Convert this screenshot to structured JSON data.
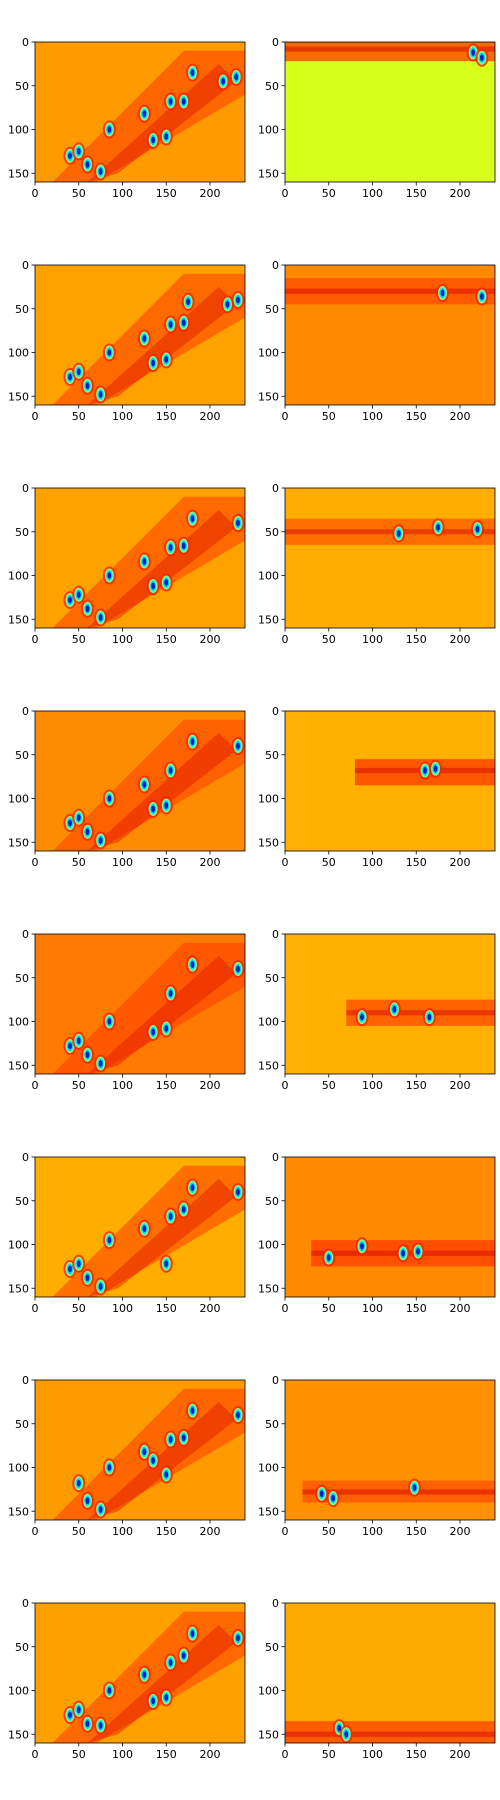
{
  "figure": {
    "layout": "8 rows x 2 columns grid of heatmap panels",
    "colormap": "jet",
    "palette": [
      "#00007f",
      "#0040ff",
      "#00e0ff",
      "#7fff7f",
      "#d7ff1a",
      "#ffd000",
      "#ffa000",
      "#ff6a00",
      "#ff2a00",
      "#d00000",
      "#7f0000"
    ]
  },
  "chart_data": [
    {
      "type": "heatmap",
      "row": 1,
      "column": "left",
      "xlim": [
        0,
        240
      ],
      "ylim": [
        160,
        0
      ],
      "xticks": [
        0,
        50,
        100,
        150,
        200
      ],
      "yticks": [
        0,
        50,
        100,
        150
      ],
      "background": "#ff9a00",
      "band": null,
      "pattern": "diagonal ridge from lower-left to upper-right with blue/cyan blobs",
      "blobs": [
        [
          40,
          130
        ],
        [
          50,
          125
        ],
        [
          60,
          140
        ],
        [
          75,
          148
        ],
        [
          85,
          100
        ],
        [
          125,
          82
        ],
        [
          135,
          112
        ],
        [
          150,
          108
        ],
        [
          155,
          68
        ],
        [
          170,
          68
        ],
        [
          180,
          35
        ],
        [
          215,
          45
        ],
        [
          230,
          40
        ]
      ]
    },
    {
      "type": "heatmap",
      "row": 1,
      "column": "right",
      "xlim": [
        0,
        240
      ],
      "ylim": [
        160,
        0
      ],
      "xticks": [
        0,
        50,
        100,
        150,
        200
      ],
      "yticks": [
        0,
        50,
        100,
        150
      ],
      "background": "#d7ff1a",
      "band": {
        "y_start": 0,
        "y_end": 22,
        "center": 8,
        "x_start": 0,
        "x_end": 240,
        "color": "#ff3a00"
      },
      "pattern": "red band along top edge, uniform yellow-green below",
      "blobs": [
        [
          215,
          12
        ],
        [
          225,
          18
        ]
      ]
    },
    {
      "type": "heatmap",
      "row": 2,
      "column": "left",
      "xlim": [
        0,
        240
      ],
      "ylim": [
        160,
        0
      ],
      "xticks": [
        0,
        50,
        100,
        150,
        200
      ],
      "yticks": [
        0,
        50,
        100,
        150
      ],
      "background": "#ffa200",
      "band": null,
      "pattern": "diagonal ridge from lower-left to upper-right with blue/cyan blobs",
      "blobs": [
        [
          40,
          128
        ],
        [
          50,
          122
        ],
        [
          60,
          138
        ],
        [
          75,
          148
        ],
        [
          85,
          100
        ],
        [
          125,
          84
        ],
        [
          135,
          112
        ],
        [
          150,
          108
        ],
        [
          155,
          68
        ],
        [
          170,
          66
        ],
        [
          175,
          42
        ],
        [
          220,
          45
        ],
        [
          232,
          40
        ]
      ]
    },
    {
      "type": "heatmap",
      "row": 2,
      "column": "right",
      "xlim": [
        0,
        240
      ],
      "ylim": [
        160,
        0
      ],
      "xticks": [
        0,
        50,
        100,
        150,
        200
      ],
      "yticks": [
        0,
        50,
        100,
        150
      ],
      "background": "#ff8a00",
      "band": {
        "y_start": 15,
        "y_end": 45,
        "center": 30,
        "x_start": 0,
        "x_end": 240,
        "color": "#ff4a00"
      },
      "pattern": "horizontal band near y=30",
      "blobs": [
        [
          180,
          32
        ],
        [
          225,
          36
        ]
      ]
    },
    {
      "type": "heatmap",
      "row": 3,
      "column": "left",
      "xlim": [
        0,
        240
      ],
      "ylim": [
        160,
        0
      ],
      "xticks": [
        0,
        50,
        100,
        150,
        200
      ],
      "yticks": [
        0,
        50,
        100,
        150
      ],
      "background": "#ffa200",
      "band": null,
      "pattern": "diagonal ridge from lower-left to upper-right with blue/cyan blobs",
      "blobs": [
        [
          40,
          128
        ],
        [
          50,
          122
        ],
        [
          60,
          138
        ],
        [
          75,
          148
        ],
        [
          85,
          100
        ],
        [
          125,
          84
        ],
        [
          135,
          112
        ],
        [
          150,
          108
        ],
        [
          155,
          68
        ],
        [
          170,
          66
        ],
        [
          180,
          35
        ],
        [
          232,
          40
        ]
      ]
    },
    {
      "type": "heatmap",
      "row": 3,
      "column": "right",
      "xlim": [
        0,
        240
      ],
      "ylim": [
        160,
        0
      ],
      "xticks": [
        0,
        50,
        100,
        150,
        200
      ],
      "yticks": [
        0,
        50,
        100,
        150
      ],
      "background": "#ffae00",
      "band": {
        "y_start": 35,
        "y_end": 65,
        "center": 50,
        "x_start": 0,
        "x_end": 240,
        "color": "#ff5a00"
      },
      "pattern": "horizontal band near y=50",
      "blobs": [
        [
          130,
          52
        ],
        [
          175,
          45
        ],
        [
          220,
          47
        ]
      ]
    },
    {
      "type": "heatmap",
      "row": 4,
      "column": "left",
      "xlim": [
        0,
        240
      ],
      "ylim": [
        160,
        0
      ],
      "xticks": [
        0,
        50,
        100,
        150,
        200
      ],
      "yticks": [
        0,
        50,
        100,
        150
      ],
      "background": "#ff8c00",
      "band": null,
      "pattern": "diagonal ridge from lower-left to upper-right with blue/cyan blobs",
      "blobs": [
        [
          40,
          128
        ],
        [
          50,
          122
        ],
        [
          60,
          138
        ],
        [
          75,
          148
        ],
        [
          85,
          100
        ],
        [
          125,
          84
        ],
        [
          135,
          112
        ],
        [
          150,
          108
        ],
        [
          155,
          68
        ],
        [
          180,
          35
        ],
        [
          232,
          40
        ]
      ]
    },
    {
      "type": "heatmap",
      "row": 4,
      "column": "right",
      "xlim": [
        0,
        240
      ],
      "ylim": [
        160,
        0
      ],
      "xticks": [
        0,
        50,
        100,
        150,
        200
      ],
      "yticks": [
        0,
        50,
        100,
        150
      ],
      "background": "#ffb000",
      "band": {
        "y_start": 55,
        "y_end": 85,
        "center": 68,
        "x_start": 80,
        "x_end": 240,
        "color": "#ff3a00"
      },
      "pattern": "horizontal band near y=68",
      "blobs": [
        [
          160,
          68
        ],
        [
          172,
          66
        ]
      ]
    },
    {
      "type": "heatmap",
      "row": 5,
      "column": "left",
      "xlim": [
        0,
        240
      ],
      "ylim": [
        160,
        0
      ],
      "xticks": [
        0,
        50,
        100,
        150,
        200
      ],
      "yticks": [
        0,
        50,
        100,
        150
      ],
      "background": "#ff7a00",
      "band": null,
      "pattern": "diagonal ridge from lower-left to upper-right with blue/cyan blobs",
      "blobs": [
        [
          40,
          128
        ],
        [
          50,
          122
        ],
        [
          60,
          138
        ],
        [
          75,
          148
        ],
        [
          85,
          100
        ],
        [
          135,
          112
        ],
        [
          150,
          108
        ],
        [
          155,
          68
        ],
        [
          180,
          35
        ],
        [
          232,
          40
        ]
      ]
    },
    {
      "type": "heatmap",
      "row": 5,
      "column": "right",
      "xlim": [
        0,
        240
      ],
      "ylim": [
        160,
        0
      ],
      "xticks": [
        0,
        50,
        100,
        150,
        200
      ],
      "yticks": [
        0,
        50,
        100,
        150
      ],
      "background": "#ffb000",
      "band": {
        "y_start": 75,
        "y_end": 105,
        "center": 90,
        "x_start": 70,
        "x_end": 240,
        "color": "#ff4a00"
      },
      "pattern": "horizontal band near y=90",
      "blobs": [
        [
          88,
          95
        ],
        [
          125,
          86
        ],
        [
          165,
          95
        ]
      ]
    },
    {
      "type": "heatmap",
      "row": 6,
      "column": "left",
      "xlim": [
        0,
        240
      ],
      "ylim": [
        160,
        0
      ],
      "xticks": [
        0,
        50,
        100,
        150,
        200
      ],
      "yticks": [
        0,
        50,
        100,
        150
      ],
      "background": "#ffae00",
      "band": null,
      "pattern": "diagonal ridge from lower-left to upper-right with blue/cyan blobs",
      "blobs": [
        [
          40,
          128
        ],
        [
          50,
          122
        ],
        [
          60,
          138
        ],
        [
          75,
          148
        ],
        [
          85,
          95
        ],
        [
          125,
          82
        ],
        [
          150,
          122
        ],
        [
          155,
          68
        ],
        [
          170,
          60
        ],
        [
          180,
          35
        ],
        [
          232,
          40
        ]
      ]
    },
    {
      "type": "heatmap",
      "row": 6,
      "column": "right",
      "xlim": [
        0,
        240
      ],
      "ylim": [
        160,
        0
      ],
      "xticks": [
        0,
        50,
        100,
        150,
        200
      ],
      "yticks": [
        0,
        50,
        100,
        150
      ],
      "background": "#ff8a00",
      "band": {
        "y_start": 95,
        "y_end": 125,
        "center": 110,
        "x_start": 30,
        "x_end": 240,
        "color": "#ff3a00"
      },
      "pattern": "horizontal band near y=110",
      "blobs": [
        [
          50,
          115
        ],
        [
          88,
          102
        ],
        [
          135,
          110
        ],
        [
          152,
          108
        ]
      ]
    },
    {
      "type": "heatmap",
      "row": 7,
      "column": "left",
      "xlim": [
        0,
        240
      ],
      "ylim": [
        160,
        0
      ],
      "xticks": [
        0,
        50,
        100,
        150,
        200
      ],
      "yticks": [
        0,
        50,
        100,
        150
      ],
      "background": "#ff9a00",
      "band": null,
      "pattern": "diagonal ridge from lower-left to upper-right with blue/cyan blobs",
      "blobs": [
        [
          50,
          118
        ],
        [
          60,
          138
        ],
        [
          75,
          148
        ],
        [
          85,
          100
        ],
        [
          125,
          82
        ],
        [
          135,
          92
        ],
        [
          150,
          108
        ],
        [
          155,
          68
        ],
        [
          170,
          66
        ],
        [
          180,
          35
        ],
        [
          232,
          40
        ]
      ]
    },
    {
      "type": "heatmap",
      "row": 7,
      "column": "right",
      "xlim": [
        0,
        240
      ],
      "ylim": [
        160,
        0
      ],
      "xticks": [
        0,
        50,
        100,
        150,
        200
      ],
      "yticks": [
        0,
        50,
        100,
        150
      ],
      "background": "#ff9000",
      "band": {
        "y_start": 115,
        "y_end": 140,
        "center": 128,
        "x_start": 20,
        "x_end": 240,
        "color": "#ff5000"
      },
      "pattern": "horizontal band near y=128",
      "blobs": [
        [
          42,
          130
        ],
        [
          55,
          135
        ],
        [
          148,
          123
        ]
      ]
    },
    {
      "type": "heatmap",
      "row": 8,
      "column": "left",
      "xlim": [
        0,
        240
      ],
      "ylim": [
        160,
        0
      ],
      "xticks": [
        0,
        50,
        100,
        150,
        200
      ],
      "yticks": [
        0,
        50,
        100,
        150
      ],
      "background": "#ffa000",
      "band": null,
      "pattern": "diagonal ridge from lower-left to upper-right with blue/cyan blobs",
      "blobs": [
        [
          40,
          128
        ],
        [
          50,
          122
        ],
        [
          60,
          138
        ],
        [
          75,
          140
        ],
        [
          85,
          100
        ],
        [
          125,
          82
        ],
        [
          135,
          112
        ],
        [
          150,
          108
        ],
        [
          155,
          68
        ],
        [
          170,
          60
        ],
        [
          180,
          35
        ],
        [
          232,
          40
        ]
      ]
    },
    {
      "type": "heatmap",
      "row": 8,
      "column": "right",
      "xlim": [
        0,
        240
      ],
      "ylim": [
        160,
        0
      ],
      "xticks": [
        0,
        50,
        100,
        150,
        200
      ],
      "yticks": [
        0,
        50,
        100,
        150
      ],
      "background": "#ffaa00",
      "band": {
        "y_start": 135,
        "y_end": 160,
        "center": 150,
        "x_start": 0,
        "x_end": 240,
        "color": "#ff4000"
      },
      "pattern": "horizontal band near y=150",
      "blobs": [
        [
          62,
          143
        ],
        [
          70,
          150
        ]
      ]
    }
  ]
}
